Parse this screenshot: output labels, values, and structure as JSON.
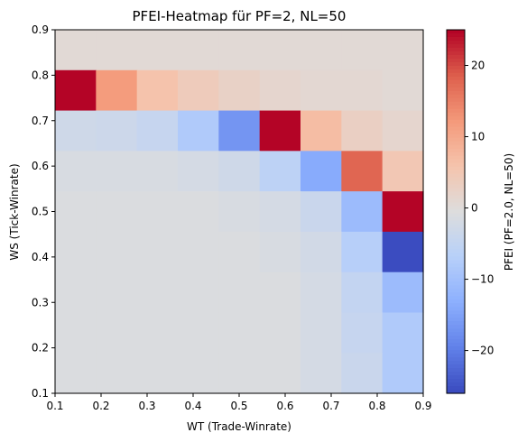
{
  "chart_data": {
    "type": "heatmap",
    "title": "PFEI-Heatmap für PF=2, NL=50",
    "xlabel": "WT (Trade-Winrate)",
    "ylabel": "WS (Tick-Winrate)",
    "colorbar_label": "PFEI (PF=2.0, NL=50)",
    "colormap": "coolwarm",
    "vmin": -26,
    "vmax": 25,
    "xlim": [
      0.1,
      0.9
    ],
    "ylim": [
      0.1,
      0.9
    ],
    "x_ticks": [
      "0.1",
      "0.2",
      "0.3",
      "0.4",
      "0.5",
      "0.6",
      "0.7",
      "0.8",
      "0.9"
    ],
    "y_ticks": [
      "0.1",
      "0.2",
      "0.3",
      "0.4",
      "0.5",
      "0.6",
      "0.7",
      "0.8",
      "0.9"
    ],
    "colorbar_ticks": [
      {
        "value": 20,
        "label": "20"
      },
      {
        "value": 10,
        "label": "10"
      },
      {
        "value": 0,
        "label": "0"
      },
      {
        "value": -10,
        "label": "−10"
      },
      {
        "value": -20,
        "label": "−20"
      }
    ],
    "rows_top_to_bottom": [
      [
        0.5,
        0.5,
        0.5,
        0.5,
        0.5,
        0.5,
        0.5,
        0.5,
        0.5
      ],
      [
        25,
        12,
        6,
        4,
        2.5,
        1.5,
        1,
        1,
        0.5
      ],
      [
        -3,
        -3.5,
        -4.5,
        -8,
        -17,
        25,
        7,
        3,
        1.5
      ],
      [
        -1.5,
        -1.5,
        -1.5,
        -2,
        -3,
        -6,
        -14,
        18,
        5
      ],
      [
        -1,
        -1,
        -1,
        -1,
        -1.5,
        -2,
        -4,
        -11,
        25
      ],
      [
        -1,
        -1,
        -1,
        -1,
        -1,
        -1.5,
        -2.5,
        -7,
        -26
      ],
      [
        -1,
        -1,
        -1,
        -1,
        -1,
        -1,
        -2,
        -5,
        -11
      ],
      [
        -1,
        -1,
        -1,
        -1,
        -1,
        -1,
        -2,
        -4.5,
        -8
      ],
      [
        -1,
        -1,
        -1,
        -1,
        -1,
        -1,
        -2,
        -4,
        -8
      ]
    ]
  }
}
